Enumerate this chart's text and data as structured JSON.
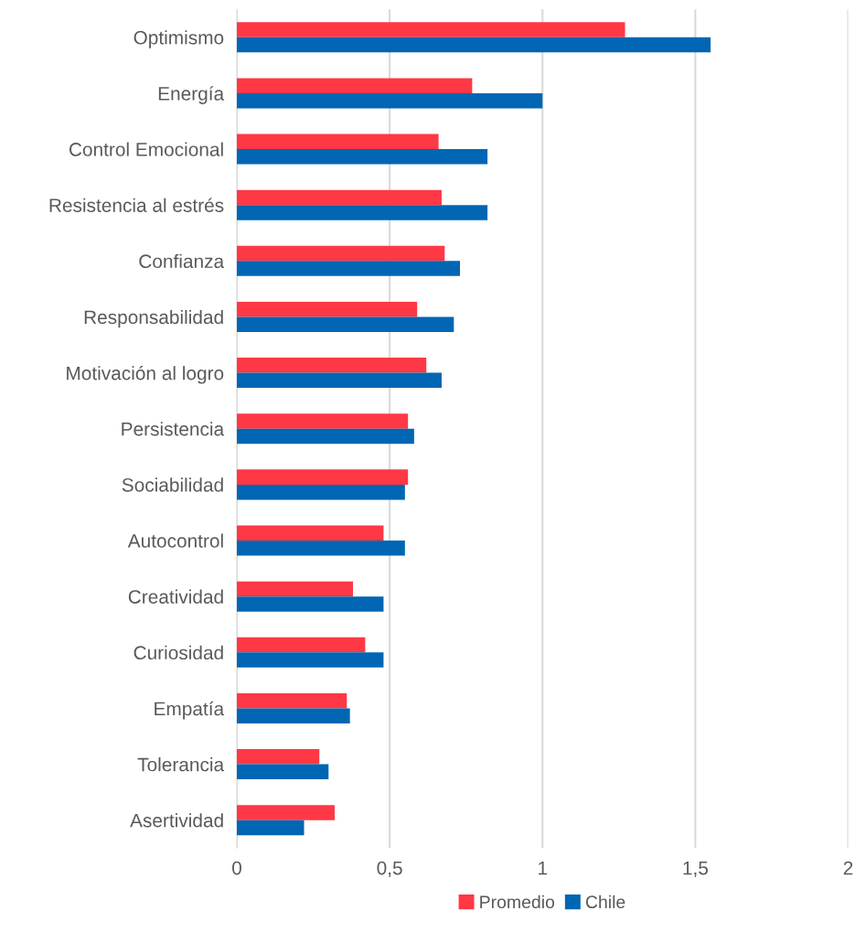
{
  "chart_data": {
    "type": "bar",
    "orientation": "horizontal",
    "categories": [
      "Optimismo",
      "Energía",
      "Control Emocional",
      "Resistencia al estrés",
      "Confianza",
      "Responsabilidad",
      "Motivación al logro",
      "Persistencia",
      "Sociabilidad",
      "Autocontrol",
      "Creatividad",
      "Curiosidad",
      "Empatía",
      "Tolerancia",
      "Asertividad"
    ],
    "series": [
      {
        "name": "Promedio",
        "color": "#ff3845",
        "values": [
          1.27,
          0.77,
          0.66,
          0.67,
          0.68,
          0.59,
          0.62,
          0.56,
          0.56,
          0.48,
          0.38,
          0.42,
          0.36,
          0.27,
          0.32
        ]
      },
      {
        "name": "Chile",
        "color": "#0066b3",
        "values": [
          1.55,
          1.0,
          0.82,
          0.82,
          0.73,
          0.71,
          0.67,
          0.58,
          0.55,
          0.55,
          0.48,
          0.48,
          0.37,
          0.3,
          0.22
        ]
      }
    ],
    "xlim": [
      0,
      2
    ],
    "xticks": [
      0,
      {
        "value": 0.5,
        "label": "0,5"
      },
      1,
      {
        "value": 1.5,
        "label": "1,5"
      },
      2
    ],
    "grid": "x",
    "legend": "bottom"
  }
}
